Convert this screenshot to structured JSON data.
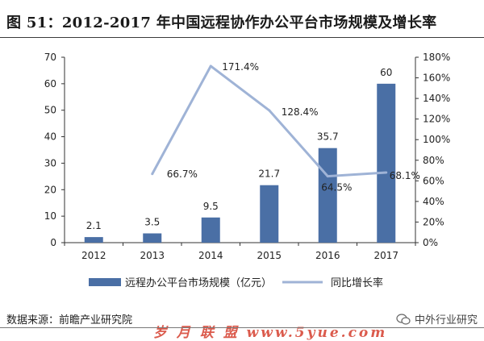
{
  "figure": {
    "title": "图 51：2012-2017 年中国远程协作办公平台市场规模及增长率",
    "source": "数据来源：前瞻产业研究院",
    "brand": "中外行业研究",
    "watermark": "岁 月 联 盟  www.5yue.com"
  },
  "chart_data": {
    "type": "bar",
    "categories": [
      "2012",
      "2013",
      "2014",
      "2015",
      "2016",
      "2017"
    ],
    "series": [
      {
        "name": "远程办公平台市场规模（亿元）",
        "type": "bar",
        "axis": "left",
        "values": [
          2.1,
          3.5,
          9.5,
          21.7,
          35.7,
          60
        ],
        "labels": [
          "2.1",
          "3.5",
          "9.5",
          "21.7",
          "35.7",
          "60"
        ]
      },
      {
        "name": "同比增长率",
        "type": "line",
        "axis": "right",
        "values": [
          null,
          66.7,
          171.4,
          128.4,
          64.5,
          68.1
        ],
        "labels": [
          "",
          "66.7%",
          "171.4%",
          "128.4%",
          "64.5%",
          "68.1%"
        ]
      }
    ],
    "y_left": {
      "min": 0,
      "max": 70,
      "ticks": [
        "0",
        "10",
        "20",
        "30",
        "40",
        "50",
        "60",
        "70"
      ]
    },
    "y_right": {
      "min": 0,
      "max": 180,
      "ticks": [
        "0%",
        "20%",
        "40%",
        "60%",
        "80%",
        "100%",
        "120%",
        "140%",
        "160%",
        "180%"
      ]
    },
    "grid": false,
    "legend_position": "bottom",
    "colors": {
      "bar": "#4a6fa5",
      "line": "#9fb3d6",
      "axis": "#333333",
      "text": "#222222"
    }
  }
}
